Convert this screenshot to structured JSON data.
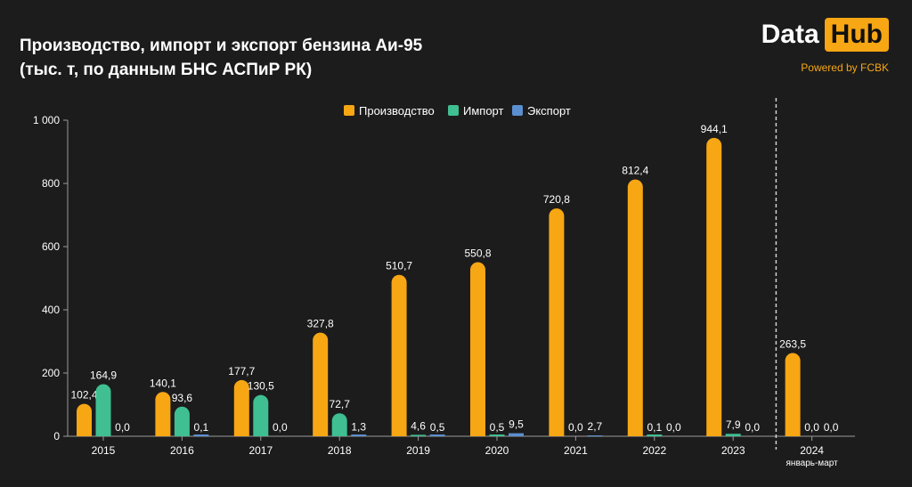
{
  "header": {
    "title_line1": "Производство, импорт и экспорт бензина Аи-95",
    "title_line2": "(тыс. т, по данным БНС АСПиР РК)"
  },
  "brand": {
    "part1": "Data",
    "part2": "Hub",
    "powered": "Powered by FCBK"
  },
  "colors": {
    "production": "#f7a614",
    "import": "#3fbf92",
    "export": "#5b8fd0",
    "background": "#1c1c1c"
  },
  "chart_data": {
    "type": "bar",
    "categories": [
      "2015",
      "2016",
      "2017",
      "2018",
      "2019",
      "2020",
      "2021",
      "2022",
      "2023",
      "2024"
    ],
    "category_sublabels": [
      "",
      "",
      "",
      "",
      "",
      "",
      "",
      "",
      "",
      "январь-март"
    ],
    "series": [
      {
        "name": "Производство",
        "values": [
          102.4,
          140.1,
          177.7,
          327.8,
          510.7,
          550.8,
          720.8,
          812.4,
          944.1,
          263.5
        ],
        "labels": [
          "102,4",
          "140,1",
          "177,7",
          "327,8",
          "510,7",
          "550,8",
          "720,8",
          "812,4",
          "944,1",
          "263,5"
        ]
      },
      {
        "name": "Импорт",
        "values": [
          164.9,
          93.6,
          130.5,
          72.7,
          4.6,
          0.5,
          0.0,
          0.1,
          7.9,
          0.0
        ],
        "labels": [
          "164,9",
          "93,6",
          "130,5",
          "72,7",
          "4,6",
          "0,5",
          "0,0",
          "0,1",
          "7,9",
          "0,0"
        ]
      },
      {
        "name": "Экспорт",
        "values": [
          0.0,
          0.1,
          0.0,
          1.3,
          0.5,
          9.5,
          2.7,
          0.0,
          0.0,
          0.0
        ],
        "labels": [
          "0,0",
          "0,1",
          "0,0",
          "1,3",
          "0,5",
          "9,5",
          "2,7",
          "0,0",
          "0,0",
          "0,0"
        ]
      }
    ],
    "ylim": [
      0,
      1000
    ],
    "yticks": [
      0,
      200,
      400,
      600,
      800,
      1000
    ],
    "ytick_labels": [
      "0",
      "200",
      "400",
      "600",
      "800",
      "1 000"
    ],
    "legend_position": "top-center",
    "grid": false,
    "separator_before_category": "2024"
  }
}
